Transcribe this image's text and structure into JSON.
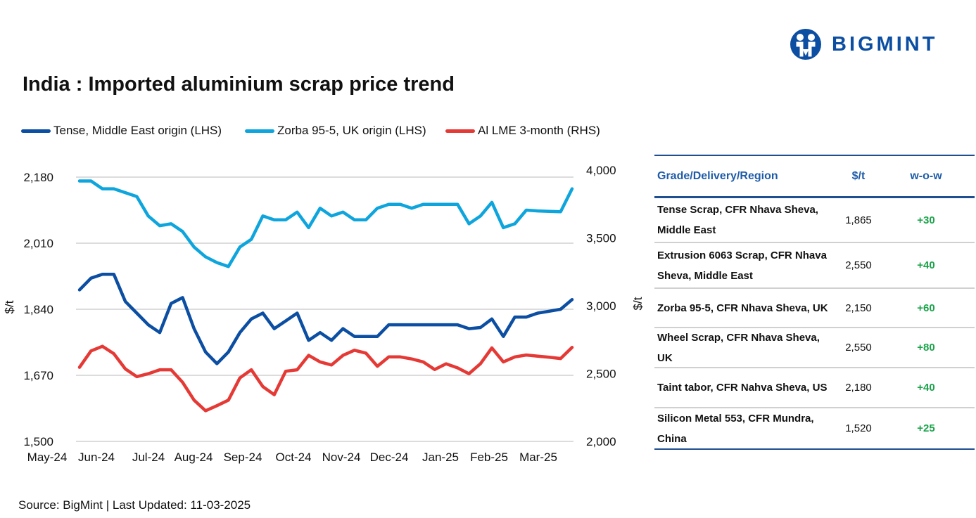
{
  "title": "India : Imported aluminium scrap price trend",
  "source": "Source: BigMint | Last Updated: 11-03-2025",
  "logo": {
    "text": "BIGMINT",
    "color": "#0b4ea2"
  },
  "chart_data": {
    "type": "line",
    "title": "India : Imported aluminium scrap price trend",
    "ylabel_left": "$/t",
    "ylabel_right": "$/t",
    "x_tick_labels": [
      "May-24",
      "Jun-24",
      "Jul-24",
      "Aug-24",
      "Sep-24",
      "Oct-24",
      "Nov-24",
      "Dec-24",
      "Jan-25",
      "Feb-25",
      "Mar-25"
    ],
    "y_left_ticks": [
      "1,500",
      "1,670",
      "1,840",
      "2,010",
      "2,180"
    ],
    "y_left_values": [
      1500,
      1670,
      1840,
      2010,
      2180
    ],
    "y_right_ticks": [
      "2,000",
      "2,500",
      "3,000",
      "3,500",
      "4,000"
    ],
    "y_right_values": [
      2000,
      2500,
      3000,
      3500,
      4000
    ],
    "ylim_left": [
      1500,
      2180
    ],
    "ylim_right": [
      2000,
      4000
    ],
    "grid": true,
    "legend_position": "top",
    "series": [
      {
        "name": "Tense, Middle East origin (LHS)",
        "axis": "left",
        "color": "#0b4ea2",
        "values": [
          1890,
          1920,
          1930,
          1930,
          1860,
          1830,
          1800,
          1780,
          1855,
          1870,
          1790,
          1730,
          1700,
          1730,
          1780,
          1815,
          1830,
          1790,
          1810,
          1830,
          1760,
          1780,
          1760,
          1790,
          1770,
          1770,
          1770,
          1800,
          1800,
          1800,
          1800,
          1800,
          1800,
          1800,
          1790,
          1793,
          1815,
          1770,
          1820,
          1820,
          1830,
          1835,
          1840,
          1865
        ]
      },
      {
        "name": "Zorba 95-5, UK origin (LHS)",
        "axis": "left",
        "color": "#0ea5dd",
        "values": [
          2170,
          2170,
          2150,
          2150,
          2140,
          2130,
          2080,
          2055,
          2060,
          2040,
          2000,
          1975,
          1960,
          1950,
          2000,
          2020,
          2080,
          2070,
          2070,
          2090,
          2050,
          2100,
          2080,
          2090,
          2070,
          2070,
          2100,
          2110,
          2110,
          2100,
          2110,
          2110,
          2110,
          2110,
          2060,
          2080,
          2115,
          2050,
          2060,
          2095,
          2093,
          2092,
          2091,
          2150
        ]
      },
      {
        "name": "Al LME 3-month (RHS)",
        "axis": "right",
        "color": "#e53935",
        "values": [
          2546,
          2667,
          2701,
          2646,
          2534,
          2477,
          2499,
          2528,
          2528,
          2435,
          2304,
          2226,
          2263,
          2304,
          2468,
          2528,
          2404,
          2344,
          2517,
          2528,
          2634,
          2586,
          2563,
          2634,
          2672,
          2651,
          2554,
          2623,
          2623,
          2608,
          2586,
          2530,
          2572,
          2542,
          2499,
          2573,
          2689,
          2586,
          2623,
          2637,
          2628,
          2620,
          2611,
          2693
        ]
      }
    ]
  },
  "table": {
    "headers": [
      "Grade/Delivery/Region",
      "$/t",
      "w-o-w"
    ],
    "rows": [
      {
        "name": "Tense Scrap, CFR Nhava Sheva, Middle East",
        "price": "1,865",
        "wow": "+30"
      },
      {
        "name": "Extrusion 6063 Scrap, CFR Nhava Sheva, Middle East",
        "price": "2,550",
        "wow": "+40"
      },
      {
        "name": "Zorba 95-5, CFR Nhava Sheva, UK",
        "price": "2,150",
        "wow": "+60"
      },
      {
        "name": "Wheel Scrap, CFR Nhava Sheva, UK",
        "price": "2,550",
        "wow": "+80"
      },
      {
        "name": "Taint tabor, CFR Nahva Sheva, US",
        "price": "2,180",
        "wow": "+40"
      },
      {
        "name": "Silicon Metal 553, CFR Mundra, China",
        "price": "1,520",
        "wow": "+25"
      }
    ],
    "header_color": "#1f5ca8",
    "positive_color": "#1aa34a"
  }
}
